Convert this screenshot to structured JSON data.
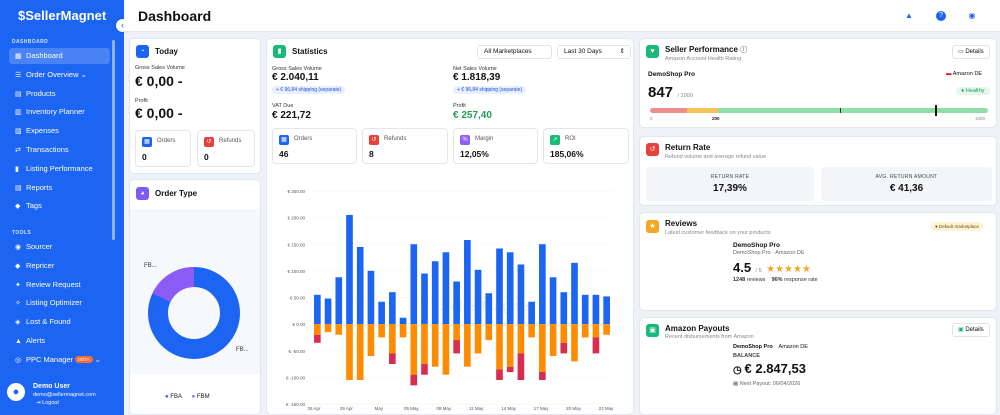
{
  "sidebar": {
    "logo": "SellerMagnet",
    "collapse_icon": "chevron-left",
    "section_dashboard": "DASHBOARD",
    "section_tools": "TOOLS",
    "items": [
      {
        "label": "Dashboard",
        "icon": "▦"
      },
      {
        "label": "Order Overview",
        "icon": "☰"
      },
      {
        "label": "Products",
        "icon": "▤"
      },
      {
        "label": "Inventory Planner",
        "icon": "▥"
      },
      {
        "label": "Expenses",
        "icon": "▨"
      },
      {
        "label": "Transactions",
        "icon": "⇄"
      },
      {
        "label": "Listing Performance",
        "icon": "▮"
      },
      {
        "label": "Reports",
        "icon": "▤"
      },
      {
        "label": "Tags",
        "icon": "◆"
      }
    ],
    "tools": [
      {
        "label": "Sourcer",
        "icon": "◉"
      },
      {
        "label": "Repricer",
        "icon": "◆"
      },
      {
        "label": "Review Request",
        "icon": "✦"
      },
      {
        "label": "Listing Optimizer",
        "icon": "✧"
      },
      {
        "label": "Lost & Found",
        "icon": "◈"
      },
      {
        "label": "Alerts",
        "icon": "▲"
      },
      {
        "label": "PPC Manager",
        "icon": "◎",
        "badge": "BETA"
      }
    ],
    "user": {
      "name": "Demo User",
      "email": "demo@sellermagnet.com",
      "logout": "Logout"
    }
  },
  "header": {
    "title": "Dashboard"
  },
  "today": {
    "title": "Today",
    "gross_label": "Gross Sales Volume",
    "gross_value": "€ 0,00",
    "gross_dash": "-",
    "profit_label": "Profit",
    "profit_value": "€ 0,00",
    "profit_dash": "-",
    "orders_label": "Orders",
    "orders_value": "0",
    "refunds_label": "Refunds",
    "refunds_value": "0"
  },
  "statistics": {
    "title": "Statistics",
    "marketplace": "All Marketplaces",
    "period": "Last 30 Days",
    "gross_label": "Gross Sales Volume",
    "gross_value": "€ 2.040,11",
    "gross_shipping": "+ € 96,84 shipping (separate)",
    "net_label": "Net Sales Volume",
    "net_value": "€ 1.818,39",
    "net_shipping": "+ € 96,84 shipping (separate)",
    "vat_label": "VAT Due",
    "vat_value": "€ 221,72",
    "profit_label": "Profit",
    "profit_value": "€ 257,40",
    "orders_label": "Orders",
    "orders_value": "46",
    "refunds_label": "Refunds",
    "refunds_value": "8",
    "margin_label": "Margin",
    "margin_value": "12,05%",
    "roi_label": "ROI",
    "roi_value": "185,06%"
  },
  "order_type": {
    "title": "Order Type",
    "fba_label": "FB...",
    "fbm_label": "FB...",
    "legend_fba": "FBA",
    "legend_fbm": "FBM",
    "fba_share": 0.82,
    "fbm_share": 0.18
  },
  "chart_data": {
    "type": "bar",
    "watermark": "SellerMagnet",
    "yticks": [
      "€ 250.00",
      "€ 200.00",
      "€ 150.00",
      "€ 100.00",
      "€ 50.00",
      "€ 0.00",
      "€ -50.00",
      "€ -100.00",
      "€ -150.00"
    ],
    "ylim": [
      -150,
      250
    ],
    "xticks": [
      "26 Apr",
      "29 Apr",
      "May",
      "05 May",
      "08 May",
      "11 May",
      "14 May",
      "17 May",
      "20 May",
      "23 May"
    ],
    "series": [
      {
        "color": "#1c64f2",
        "values": [
          55,
          48,
          88,
          205,
          145,
          100,
          42,
          60,
          12,
          150,
          95,
          118,
          135,
          80,
          158,
          102,
          58,
          142,
          135,
          112,
          42,
          150,
          88,
          60,
          115,
          55,
          55,
          52
        ]
      },
      {
        "color": "#ff8c00",
        "values": [
          -20,
          -15,
          -20,
          -105,
          -105,
          -60,
          -25,
          -55,
          -25,
          -95,
          -75,
          -80,
          -95,
          -30,
          -80,
          -55,
          -30,
          -85,
          -80,
          -55,
          -25,
          -90,
          -60,
          -35,
          -70,
          -25,
          -25,
          -20
        ]
      },
      {
        "color": "#d92d4f",
        "values": [
          -15,
          0,
          0,
          0,
          0,
          0,
          0,
          -20,
          0,
          -20,
          -20,
          0,
          0,
          -25,
          0,
          0,
          0,
          -20,
          -10,
          -50,
          0,
          -15,
          0,
          -20,
          0,
          0,
          -30,
          0
        ]
      }
    ]
  },
  "seller_performance": {
    "title": "Seller Performance",
    "subtitle": "Amazon Account Health Rating",
    "details": "Details",
    "shop": "DemoShop Pro",
    "marketplace": "Amazon DE",
    "score": "847",
    "score_max": "/ 1000",
    "status": "Healthy",
    "tick_min": "0",
    "tick_mid": "200",
    "tick_max": "1000",
    "score_fraction": 0.847
  },
  "return_rate": {
    "title": "Return Rate",
    "subtitle": "Refund volume and average refund value",
    "rate_label": "RETURN RATE",
    "rate_value": "17,39%",
    "avg_label": "AVG. RETURN AMOUNT",
    "avg_value": "€ 41,36"
  },
  "reviews": {
    "title": "Reviews",
    "subtitle": "Latest customer feedback on your products",
    "badge": "Default marketplace",
    "shop": "DemoShop Pro",
    "marketplace": "Amazon DE",
    "rating": "4.5",
    "rating_max": "/ 5",
    "stars": 4.5,
    "reviews_count": "1248",
    "reviews_label": "reviews",
    "response_rate": "96%",
    "response_label": "response rate"
  },
  "payouts": {
    "title": "Amazon Payouts",
    "subtitle": "Recent disbursements from Amazon",
    "details": "Details",
    "shop": "DemoShop Pro",
    "marketplace": "Amazon DE",
    "balance_label": "BALANCE",
    "balance_value": "€ 2.847,53",
    "next_label": "Next Payout:",
    "next_date": "06/04/2026"
  }
}
